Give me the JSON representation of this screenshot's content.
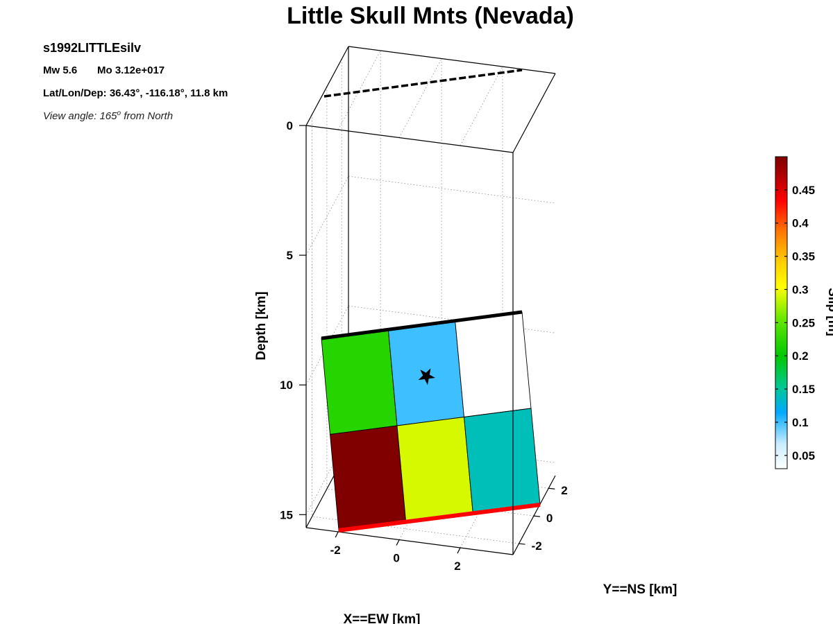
{
  "title": "Little Skull Mnts (Nevada)",
  "event": {
    "name": "s1992LITTLEsilv",
    "mw_label": "Mw 5.6",
    "mo_label": "Mo 3.12e+017",
    "location_label": "Lat/Lon/Dep: 36.43°, -116.18°, 11.8 km",
    "view_label_prefix": "View angle: 165",
    "view_label_deg": "o",
    "view_label_suffix": " from North"
  },
  "chart_data": {
    "type": "heatmap",
    "title": "Little Skull Mnts (Nevada)",
    "xlabel": "X==EW [km]",
    "ylabel": "Y==NS [km]",
    "zlabel": "Depth [km]",
    "colorbar_label": "Slip [m]",
    "x_ticks": [
      "-2",
      "0",
      "2"
    ],
    "y_ticks": [
      "-2",
      "0",
      "2"
    ],
    "depth_ticks": [
      "0",
      "5",
      "10",
      "15"
    ],
    "depth_lim": [
      0,
      15.5
    ],
    "view_angle_deg": 165,
    "fault_rows": 2,
    "fault_cols": 3,
    "slip": [
      [
        0.22,
        0.1,
        0.03
      ],
      [
        0.5,
        0.29,
        0.14
      ]
    ],
    "colorbar_ticks": [
      "0.05",
      "0.1",
      "0.15",
      "0.2",
      "0.25",
      "0.3",
      "0.35",
      "0.4",
      "0.45"
    ],
    "colorbar_range": [
      0.03,
      0.5
    ],
    "hypocenter": {
      "row": 0.5,
      "col": 1.5,
      "depth_km": 11.8
    },
    "colors": {
      "top_edge": "#000000",
      "bottom_edge": "#ff0000",
      "projection_line": "#000000",
      "hypocenter_marker": "#000000"
    }
  }
}
